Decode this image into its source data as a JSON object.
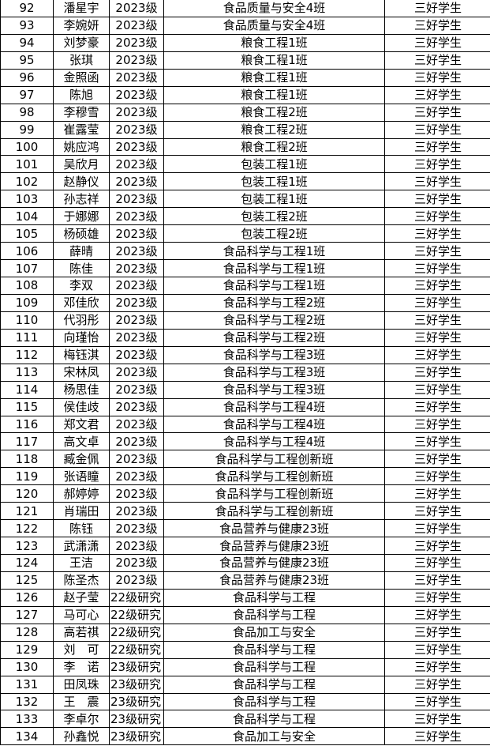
{
  "rows": [
    [
      "92",
      "潘星宇",
      "2023级",
      "食品质量与安全4班",
      "三好学生"
    ],
    [
      "93",
      "李婉妍",
      "2023级",
      "食品质量与安全4班",
      "三好学生"
    ],
    [
      "94",
      "刘梦豪",
      "2023级",
      "粮食工程1班",
      "三好学生"
    ],
    [
      "95",
      "张琪",
      "2023级",
      "粮食工程1班",
      "三好学生"
    ],
    [
      "96",
      "金照函",
      "2023级",
      "粮食工程1班",
      "三好学生"
    ],
    [
      "97",
      "陈旭",
      "2023级",
      "粮食工程1班",
      "三好学生"
    ],
    [
      "98",
      "李穆雪",
      "2023级",
      "粮食工程2班",
      "三好学生"
    ],
    [
      "99",
      "崔露莹",
      "2023级",
      "粮食工程2班",
      "三好学生"
    ],
    [
      "100",
      "姚应鸿",
      "2023级",
      "粮食工程2班",
      "三好学生"
    ],
    [
      "101",
      "吴欣月",
      "2023级",
      "包装工程1班",
      "三好学生"
    ],
    [
      "102",
      "赵静仪",
      "2023级",
      "包装工程1班",
      "三好学生"
    ],
    [
      "103",
      "孙志祥",
      "2023级",
      "包装工程1班",
      "三好学生"
    ],
    [
      "104",
      "于娜娜",
      "2023级",
      "包装工程2班",
      "三好学生"
    ],
    [
      "105",
      "杨硕雄",
      "2023级",
      "包装工程2班",
      "三好学生"
    ],
    [
      "106",
      "薛晴",
      "2023级",
      "食品科学与工程1班",
      "三好学生"
    ],
    [
      "107",
      "陈佳",
      "2023级",
      "食品科学与工程1班",
      "三好学生"
    ],
    [
      "108",
      "李双",
      "2023级",
      "食品科学与工程1班",
      "三好学生"
    ],
    [
      "109",
      "邓佳欣",
      "2023级",
      "食品科学与工程2班",
      "三好学生"
    ],
    [
      "110",
      "代羽彤",
      "2023级",
      "食品科学与工程2班",
      "三好学生"
    ],
    [
      "111",
      "向瑾怡",
      "2023级",
      "食品科学与工程2班",
      "三好学生"
    ],
    [
      "112",
      "梅钰淇",
      "2023级",
      "食品科学与工程3班",
      "三好学生"
    ],
    [
      "113",
      "宋林凤",
      "2023级",
      "食品科学与工程3班",
      "三好学生"
    ],
    [
      "114",
      "杨思佳",
      "2023级",
      "食品科学与工程3班",
      "三好学生"
    ],
    [
      "115",
      "侯佳歧",
      "2023级",
      "食品科学与工程4班",
      "三好学生"
    ],
    [
      "116",
      "郑文君",
      "2023级",
      "食品科学与工程4班",
      "三好学生"
    ],
    [
      "117",
      "高文卓",
      "2023级",
      "食品科学与工程4班",
      "三好学生"
    ],
    [
      "118",
      "臧金佩",
      "2023级",
      "食品科学与工程创新班",
      "三好学生"
    ],
    [
      "119",
      "张语瞳",
      "2023级",
      "食品科学与工程创新班",
      "三好学生"
    ],
    [
      "120",
      "郝婷婷",
      "2023级",
      "食品科学与工程创新班",
      "三好学生"
    ],
    [
      "121",
      "肖瑞田",
      "2023级",
      "食品科学与工程创新班",
      "三好学生"
    ],
    [
      "122",
      "陈钰",
      "2023级",
      "食品营养与健康23班",
      "三好学生"
    ],
    [
      "123",
      "武潇潇",
      "2023级",
      "食品营养与健康23班",
      "三好学生"
    ],
    [
      "124",
      "王洁",
      "2023级",
      "食品营养与健康23班",
      "三好学生"
    ],
    [
      "125",
      "陈圣杰",
      "2023级",
      "食品营养与健康23班",
      "三好学生"
    ],
    [
      "126",
      "赵子莹",
      "22级研究",
      "食品科学与工程",
      "三好学生"
    ],
    [
      "127",
      "马可心",
      "22级研究",
      "食品科学与工程",
      "三好学生"
    ],
    [
      "128",
      "高若祺",
      "22级研究",
      "食品加工与安全",
      "三好学生"
    ],
    [
      "129",
      "刘　可",
      "22级研究",
      "食品科学与工程",
      "三好学生"
    ],
    [
      "130",
      "李　诺",
      "23级研究",
      "食品科学与工程",
      "三好学生"
    ],
    [
      "131",
      "田凤珠",
      "23级研究",
      "食品科学与工程",
      "三好学生"
    ],
    [
      "132",
      "王　震",
      "23级研究",
      "食品科学与工程",
      "三好学生"
    ],
    [
      "133",
      "李卓尔",
      "23级研究",
      "食品科学与工程",
      "三好学生"
    ],
    [
      "134",
      "孙鑫悦",
      "23级研究",
      "食品加工与安全",
      "三好学生"
    ]
  ]
}
